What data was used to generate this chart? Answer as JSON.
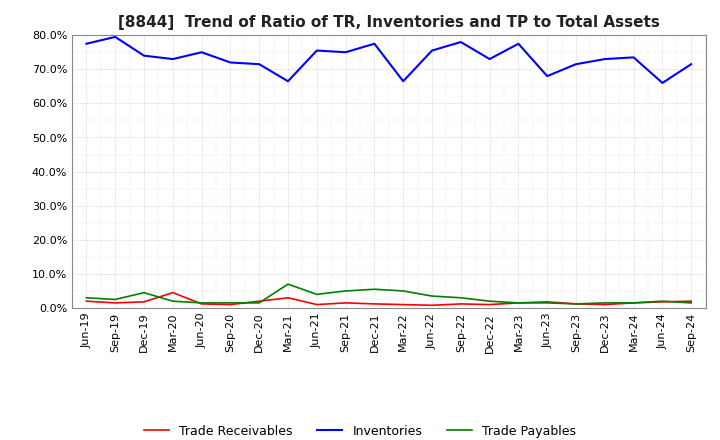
{
  "title": "[8844]  Trend of Ratio of TR, Inventories and TP to Total Assets",
  "x_labels": [
    "Jun-19",
    "Sep-19",
    "Dec-19",
    "Mar-20",
    "Jun-20",
    "Sep-20",
    "Dec-20",
    "Mar-21",
    "Jun-21",
    "Sep-21",
    "Dec-21",
    "Mar-22",
    "Jun-22",
    "Sep-22",
    "Dec-22",
    "Mar-23",
    "Jun-23",
    "Sep-23",
    "Dec-23",
    "Mar-24",
    "Jun-24",
    "Sep-24"
  ],
  "trade_receivables": [
    2.0,
    1.5,
    1.8,
    4.5,
    1.2,
    1.0,
    2.0,
    3.0,
    1.0,
    1.5,
    1.2,
    1.0,
    0.8,
    1.2,
    1.0,
    1.5,
    1.8,
    1.2,
    1.0,
    1.5,
    1.8,
    2.0
  ],
  "inventories": [
    77.5,
    79.5,
    74.0,
    73.0,
    75.0,
    72.0,
    71.5,
    66.5,
    75.5,
    75.0,
    77.5,
    66.5,
    75.5,
    78.0,
    73.0,
    77.5,
    68.0,
    71.5,
    73.0,
    73.5,
    66.0,
    71.5
  ],
  "trade_payables": [
    3.0,
    2.5,
    4.5,
    2.0,
    1.5,
    1.5,
    1.5,
    7.0,
    4.0,
    5.0,
    5.5,
    5.0,
    3.5,
    3.0,
    2.0,
    1.5,
    1.5,
    1.2,
    1.5,
    1.5,
    2.0,
    1.5
  ],
  "tr_color": "#ff0000",
  "inv_color": "#0000ff",
  "tp_color": "#008000",
  "ylim": [
    0,
    80
  ],
  "yticks": [
    0,
    10,
    20,
    30,
    40,
    50,
    60,
    70,
    80
  ],
  "grid_color": "#aaaaaa",
  "background_color": "#ffffff",
  "title_fontsize": 11,
  "legend_fontsize": 9,
  "tick_fontsize": 8
}
